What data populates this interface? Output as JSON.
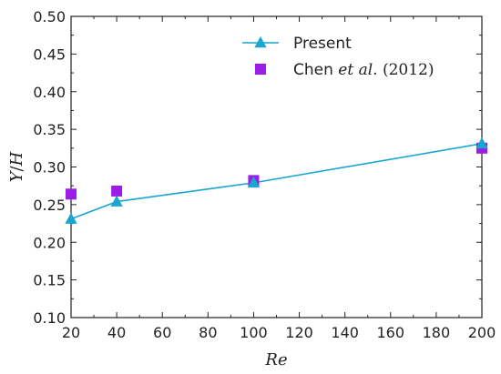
{
  "chart_data": {
    "type": "line",
    "xlabel": "Re",
    "ylabel": "Y/H",
    "ylabel_italic_part": "Y",
    "ylabel_slash": "/",
    "ylabel_italic_part2": "H",
    "xlim": [
      20,
      200
    ],
    "ylim": [
      0.1,
      0.5
    ],
    "xticks": [
      "20",
      "40",
      "60",
      "80",
      "100",
      "120",
      "140",
      "160",
      "180",
      "200"
    ],
    "yticks": [
      "0.10",
      "0.15",
      "0.20",
      "0.25",
      "0.30",
      "0.35",
      "0.40",
      "0.45",
      "0.50"
    ],
    "grid": false,
    "legend_position": "top-right",
    "series": [
      {
        "name": "Present",
        "marker": "triangle",
        "line": true,
        "color": "#1aa6cf",
        "x": [
          20,
          40,
          100,
          200
        ],
        "y": [
          0.231,
          0.254,
          0.279,
          0.331
        ]
      },
      {
        "name_parts": [
          "Chen ",
          "et al.",
          " (2012)"
        ],
        "marker": "square",
        "line": false,
        "color": "#9a1ee6",
        "x": [
          20,
          40,
          100,
          200
        ],
        "y": [
          0.264,
          0.268,
          0.282,
          0.325
        ]
      }
    ]
  }
}
